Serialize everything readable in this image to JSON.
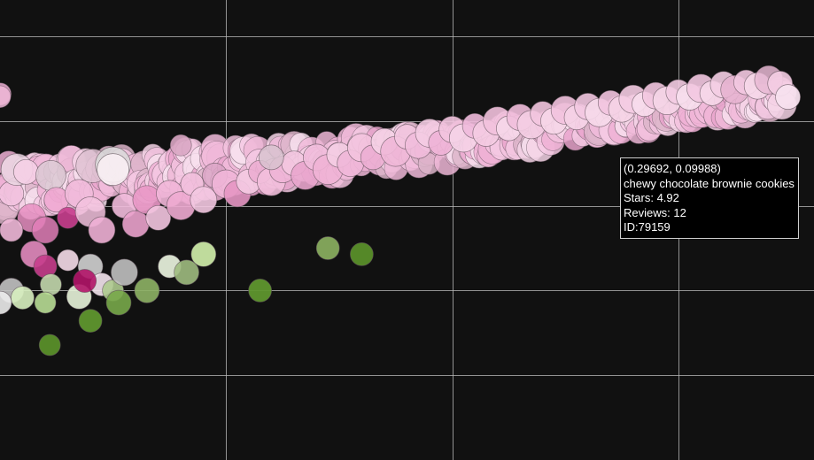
{
  "chart_data": {
    "type": "scatter",
    "title": "",
    "xlabel": "",
    "ylabel": "",
    "xlim": [
      -0.4,
      0.32
    ],
    "ylim": [
      -0.2,
      0.18
    ],
    "grid": true,
    "x_gridlines": [
      -0.2,
      0.0,
      0.2
    ],
    "y_gridlines": [
      0.15,
      0.08,
      0.01,
      -0.06,
      -0.13,
      -0.2
    ],
    "colors": {
      "background": "#111111",
      "grid": "#bdbdbd",
      "pink_light": "#f4c9e3",
      "pink_mid": "#e07fb8",
      "magenta": "#b8166f",
      "white_pink": "#f5e1ec",
      "green_light": "#c9e7a4",
      "green_dark": "#5a8f2a"
    },
    "tooltip": {
      "coords": "(0.29692, 0.09988)",
      "name": "chewy chocolate brownie cookies",
      "stars": "Stars: 4.92",
      "reviews": "Reviews: 12",
      "id": "ID:79159"
    },
    "band": {
      "description_points": [
        [
          -0.4,
          0.025
        ],
        [
          -0.3,
          0.033
        ],
        [
          -0.2,
          0.042
        ],
        [
          -0.1,
          0.05
        ],
        [
          0.0,
          0.06
        ],
        [
          0.1,
          0.073
        ],
        [
          0.2,
          0.087
        ],
        [
          0.297,
          0.0999
        ]
      ]
    },
    "points": [
      {
        "x": -0.39,
        "y": 0.02,
        "r": 14,
        "c": "#f2c3df",
        "o": 0.9
      },
      {
        "x": -0.385,
        "y": 0.04,
        "r": 18,
        "c": "#ead6e2",
        "o": 0.85
      },
      {
        "x": -0.372,
        "y": 0.0,
        "r": 16,
        "c": "#e78fc2",
        "o": 0.85
      },
      {
        "x": -0.39,
        "y": -0.01,
        "r": 13,
        "c": "#f0b8d8",
        "o": 0.9
      },
      {
        "x": -0.377,
        "y": 0.038,
        "r": 14,
        "c": "#f5cfe5",
        "o": 0.9
      },
      {
        "x": -0.355,
        "y": 0.035,
        "r": 17,
        "c": "#dcc9d3",
        "o": 0.85
      },
      {
        "x": -0.36,
        "y": -0.01,
        "r": 15,
        "c": "#e27fb9",
        "o": 0.85
      },
      {
        "x": -0.35,
        "y": 0.015,
        "r": 14,
        "c": "#f0a9d1",
        "o": 0.9
      },
      {
        "x": -0.34,
        "y": 0.0,
        "r": 12,
        "c": "#c93f8f",
        "o": 0.9
      },
      {
        "x": -0.33,
        "y": 0.02,
        "r": 16,
        "c": "#f1bada",
        "o": 0.9
      },
      {
        "x": -0.32,
        "y": 0.005,
        "r": 17,
        "c": "#f3c2de",
        "o": 0.85
      },
      {
        "x": -0.31,
        "y": -0.01,
        "r": 15,
        "c": "#eeb0d5",
        "o": 0.9
      },
      {
        "x": -0.318,
        "y": 0.043,
        "r": 19,
        "c": "#dfc2d2",
        "o": 0.85
      },
      {
        "x": -0.3,
        "y": 0.044,
        "r": 20,
        "c": "#d9d9d9",
        "o": 0.85
      },
      {
        "x": -0.3,
        "y": 0.04,
        "r": 18,
        "c": "#f8eef3",
        "o": 0.9
      },
      {
        "x": -0.29,
        "y": 0.01,
        "r": 14,
        "c": "#f1bbdb",
        "o": 0.9
      },
      {
        "x": -0.28,
        "y": -0.005,
        "r": 15,
        "c": "#eaa2cc",
        "o": 0.9
      },
      {
        "x": -0.27,
        "y": 0.015,
        "r": 16,
        "c": "#e998c7",
        "o": 0.9
      },
      {
        "x": -0.26,
        "y": 0.0,
        "r": 14,
        "c": "#f3c5e0",
        "o": 0.9
      },
      {
        "x": -0.25,
        "y": 0.02,
        "r": 15,
        "c": "#f1b6d8",
        "o": 0.9
      },
      {
        "x": -0.24,
        "y": 0.01,
        "r": 16,
        "c": "#eeabd2",
        "o": 0.9
      },
      {
        "x": -0.23,
        "y": 0.028,
        "r": 13,
        "c": "#f2c0dd",
        "o": 0.9
      },
      {
        "x": -0.22,
        "y": 0.015,
        "r": 15,
        "c": "#f3c8e1",
        "o": 0.9
      },
      {
        "x": -0.21,
        "y": 0.035,
        "r": 14,
        "c": "#dba5c5",
        "o": 0.85
      },
      {
        "x": -0.2,
        "y": 0.028,
        "r": 16,
        "c": "#f0b5d7",
        "o": 0.9
      },
      {
        "x": -0.19,
        "y": 0.02,
        "r": 15,
        "c": "#e596c3",
        "o": 0.9
      },
      {
        "x": -0.18,
        "y": 0.03,
        "r": 14,
        "c": "#f4cae2",
        "o": 0.9
      },
      {
        "x": -0.17,
        "y": 0.038,
        "r": 13,
        "c": "#ecadd2",
        "o": 0.9
      },
      {
        "x": -0.16,
        "y": 0.03,
        "r": 16,
        "c": "#f2bfdc",
        "o": 0.9
      },
      {
        "x": -0.15,
        "y": 0.04,
        "r": 15,
        "c": "#eeb4d6",
        "o": 0.9
      },
      {
        "x": -0.14,
        "y": 0.045,
        "r": 14,
        "c": "#f3c7e0",
        "o": 0.9
      },
      {
        "x": -0.13,
        "y": 0.035,
        "r": 16,
        "c": "#e9a5cd",
        "o": 0.9
      },
      {
        "x": -0.12,
        "y": 0.05,
        "r": 15,
        "c": "#f1bcdb",
        "o": 0.9
      },
      {
        "x": -0.11,
        "y": 0.04,
        "r": 17,
        "c": "#efb2d5",
        "o": 0.9
      },
      {
        "x": -0.1,
        "y": 0.052,
        "r": 14,
        "c": "#f4cde3",
        "o": 0.9
      },
      {
        "x": -0.09,
        "y": 0.045,
        "r": 15,
        "c": "#f0b7d8",
        "o": 0.9
      },
      {
        "x": -0.08,
        "y": 0.058,
        "r": 16,
        "c": "#f3c3de",
        "o": 0.9
      },
      {
        "x": -0.07,
        "y": 0.05,
        "r": 14,
        "c": "#ecaed3",
        "o": 0.9
      },
      {
        "x": -0.06,
        "y": 0.063,
        "r": 15,
        "c": "#f5d2e6",
        "o": 0.9
      },
      {
        "x": -0.05,
        "y": 0.055,
        "r": 17,
        "c": "#efb7d7",
        "o": 0.9
      },
      {
        "x": -0.04,
        "y": 0.067,
        "r": 14,
        "c": "#f3c6e0",
        "o": 0.9
      },
      {
        "x": -0.03,
        "y": 0.06,
        "r": 15,
        "c": "#f1bddb",
        "o": 0.9
      },
      {
        "x": -0.02,
        "y": 0.07,
        "r": 16,
        "c": "#f4cce3",
        "o": 0.9
      },
      {
        "x": -0.01,
        "y": 0.062,
        "r": 14,
        "c": "#eeb3d6",
        "o": 0.9
      },
      {
        "x": 0.0,
        "y": 0.073,
        "r": 15,
        "c": "#f3c4df",
        "o": 0.9
      },
      {
        "x": 0.01,
        "y": 0.066,
        "r": 16,
        "c": "#f5d3e7",
        "o": 0.9
      },
      {
        "x": 0.02,
        "y": 0.076,
        "r": 14,
        "c": "#f0badb",
        "o": 0.9
      },
      {
        "x": 0.03,
        "y": 0.07,
        "r": 15,
        "c": "#f4cbe2",
        "o": 0.9
      },
      {
        "x": 0.04,
        "y": 0.08,
        "r": 16,
        "c": "#f2c1dd",
        "o": 0.9
      },
      {
        "x": 0.05,
        "y": 0.074,
        "r": 14,
        "c": "#f6d7e9",
        "o": 0.9
      },
      {
        "x": 0.06,
        "y": 0.083,
        "r": 15,
        "c": "#f1bedc",
        "o": 0.9
      },
      {
        "x": 0.07,
        "y": 0.077,
        "r": 16,
        "c": "#f4cde3",
        "o": 0.9
      },
      {
        "x": 0.08,
        "y": 0.086,
        "r": 14,
        "c": "#f3c5df",
        "o": 0.9
      },
      {
        "x": 0.09,
        "y": 0.08,
        "r": 15,
        "c": "#f6d6e8",
        "o": 0.9
      },
      {
        "x": 0.1,
        "y": 0.089,
        "r": 16,
        "c": "#f2c2de",
        "o": 0.9
      },
      {
        "x": 0.11,
        "y": 0.083,
        "r": 14,
        "c": "#f5d1e5",
        "o": 0.9
      },
      {
        "x": 0.12,
        "y": 0.092,
        "r": 15,
        "c": "#f3c8e1",
        "o": 0.9
      },
      {
        "x": 0.13,
        "y": 0.087,
        "r": 16,
        "c": "#f6d9ea",
        "o": 0.9
      },
      {
        "x": 0.14,
        "y": 0.095,
        "r": 14,
        "c": "#f2c4df",
        "o": 0.9
      },
      {
        "x": 0.15,
        "y": 0.09,
        "r": 15,
        "c": "#f5d3e6",
        "o": 0.9
      },
      {
        "x": 0.16,
        "y": 0.098,
        "r": 16,
        "c": "#f4cbe2",
        "o": 0.9
      },
      {
        "x": 0.17,
        "y": 0.094,
        "r": 14,
        "c": "#f7ddec",
        "o": 0.9
      },
      {
        "x": 0.18,
        "y": 0.101,
        "r": 15,
        "c": "#f3c6e0",
        "o": 0.9
      },
      {
        "x": 0.19,
        "y": 0.097,
        "r": 16,
        "c": "#f5d5e7",
        "o": 0.9
      },
      {
        "x": 0.2,
        "y": 0.104,
        "r": 14,
        "c": "#f4cce3",
        "o": 0.9
      },
      {
        "x": 0.21,
        "y": 0.1,
        "r": 15,
        "c": "#f7dfed",
        "o": 0.9
      },
      {
        "x": 0.22,
        "y": 0.107,
        "r": 16,
        "c": "#f3c8e1",
        "o": 0.9
      },
      {
        "x": 0.23,
        "y": 0.103,
        "r": 14,
        "c": "#f6d7e9",
        "o": 0.9
      },
      {
        "x": 0.24,
        "y": 0.11,
        "r": 15,
        "c": "#f4cde3",
        "o": 0.9
      },
      {
        "x": 0.25,
        "y": 0.106,
        "r": 16,
        "c": "#e5b2cf",
        "o": 0.85
      },
      {
        "x": 0.26,
        "y": 0.112,
        "r": 14,
        "c": "#f3c9e1",
        "o": 0.9
      },
      {
        "x": 0.27,
        "y": 0.109,
        "r": 15,
        "c": "#f6d8e9",
        "o": 0.9
      },
      {
        "x": 0.28,
        "y": 0.114,
        "r": 16,
        "c": "#e8b9d3",
        "o": 0.85
      },
      {
        "x": 0.29,
        "y": 0.111,
        "r": 14,
        "c": "#f4cde3",
        "o": 0.9
      },
      {
        "x": 0.297,
        "y": 0.0999,
        "r": 14,
        "c": "#f7e0ee",
        "o": 0.95
      },
      {
        "x": -0.24,
        "y": 0.06,
        "r": 12,
        "c": "#d9a6c3",
        "o": 0.9
      },
      {
        "x": -0.16,
        "y": 0.05,
        "r": 14,
        "c": "#d8c2cf",
        "o": 0.85
      },
      {
        "x": -0.37,
        "y": -0.03,
        "r": 15,
        "c": "#e38bbf",
        "o": 0.9
      },
      {
        "x": -0.36,
        "y": -0.04,
        "r": 13,
        "c": "#c63d8c",
        "o": 0.9
      },
      {
        "x": -0.34,
        "y": -0.035,
        "r": 12,
        "c": "#f5dce9",
        "o": 0.9
      },
      {
        "x": -0.32,
        "y": -0.04,
        "r": 14,
        "c": "#d1d1d1",
        "o": 0.9
      },
      {
        "x": -0.31,
        "y": -0.055,
        "r": 13,
        "c": "#f4e6ee",
        "o": 0.9
      },
      {
        "x": -0.3,
        "y": -0.06,
        "r": 12,
        "c": "#aeca8f",
        "o": 0.9
      },
      {
        "x": -0.33,
        "y": -0.065,
        "r": 14,
        "c": "#e8f4da",
        "o": 0.9
      },
      {
        "x": -0.355,
        "y": -0.055,
        "r": 12,
        "c": "#c3d8ad",
        "o": 0.9
      },
      {
        "x": -0.325,
        "y": -0.052,
        "r": 13,
        "c": "#b11468",
        "o": 0.9
      },
      {
        "x": -0.39,
        "y": -0.06,
        "r": 14,
        "c": "#c2c2c2",
        "o": 0.9
      },
      {
        "x": -0.38,
        "y": -0.066,
        "r": 13,
        "c": "#d8efc0",
        "o": 0.9
      },
      {
        "x": -0.36,
        "y": -0.07,
        "r": 12,
        "c": "#b8dd95",
        "o": 0.9
      },
      {
        "x": -0.295,
        "y": -0.07,
        "r": 14,
        "c": "#78a84a",
        "o": 0.9
      },
      {
        "x": -0.29,
        "y": -0.045,
        "r": 15,
        "c": "#c0c0c0",
        "o": 0.9
      },
      {
        "x": -0.27,
        "y": -0.06,
        "r": 14,
        "c": "#8eb365",
        "o": 0.9
      },
      {
        "x": -0.25,
        "y": -0.04,
        "r": 13,
        "c": "#edf7e2",
        "o": 0.9
      },
      {
        "x": -0.235,
        "y": -0.045,
        "r": 14,
        "c": "#9ebb80",
        "o": 0.9
      },
      {
        "x": -0.22,
        "y": -0.03,
        "r": 14,
        "c": "#c9e7a4",
        "o": 0.95
      },
      {
        "x": -0.17,
        "y": -0.06,
        "r": 13,
        "c": "#5f962e",
        "o": 0.95
      },
      {
        "x": -0.11,
        "y": -0.025,
        "r": 13,
        "c": "#87ab5e",
        "o": 0.95
      },
      {
        "x": -0.08,
        "y": -0.03,
        "r": 13,
        "c": "#5a8f2a",
        "o": 0.95
      },
      {
        "x": -0.32,
        "y": -0.085,
        "r": 13,
        "c": "#5f962e",
        "o": 0.95
      },
      {
        "x": -0.356,
        "y": -0.105,
        "r": 12,
        "c": "#5a8f2a",
        "o": 0.95
      },
      {
        "x": -0.4,
        "y": -0.07,
        "r": 13,
        "c": "#ececec",
        "o": 0.9
      }
    ]
  }
}
